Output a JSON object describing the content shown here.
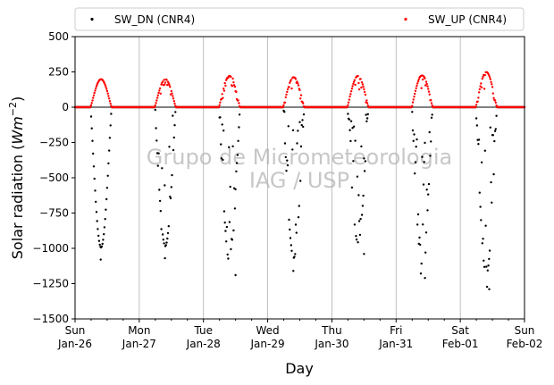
{
  "chart_data": {
    "type": "scatter",
    "xlabel": "Day",
    "ylabel_prefix": "Solar radiation (",
    "ylabel_unit": "Wm",
    "ylabel_exp": "−2",
    "ylabel_suffix": ")",
    "ylim": [
      -1500,
      500
    ],
    "yticks": [
      500,
      250,
      0,
      -250,
      -500,
      -750,
      -1000,
      -1250,
      -1500
    ],
    "xlim_days": [
      0,
      7
    ],
    "xticks": [
      {
        "day": "Sun",
        "date": "Jan-26"
      },
      {
        "day": "Mon",
        "date": "Jan-27"
      },
      {
        "day": "Tue",
        "date": "Jan-28"
      },
      {
        "day": "Wed",
        "date": "Jan-29"
      },
      {
        "day": "Thu",
        "date": "Jan-30"
      },
      {
        "day": "Fri",
        "date": "Jan-31"
      },
      {
        "day": "Sat",
        "date": "Feb-01"
      },
      {
        "day": "Sun",
        "date": "Feb-02"
      }
    ],
    "grid": "vertical",
    "legend": {
      "placement": "top",
      "entries": [
        {
          "label": "SW_DN (CNR4)",
          "color": "#000000"
        },
        {
          "label": "SW_UP (CNR4)",
          "color": "#ff0000"
        }
      ]
    },
    "watermark": [
      "Grupo de Micrometeorologia",
      "IAG / USP"
    ],
    "series": [
      {
        "name": "SW_DN (CNR4)",
        "color": "#000000",
        "daily_peaks": [
          -1080,
          -1070,
          -1190,
          -1160,
          -1040,
          -1210,
          -1290
        ],
        "sample_points": [
          {
            "x": 0.4,
            "y": -1080
          },
          {
            "x": 1.4,
            "y": -1070
          },
          {
            "x": 2.5,
            "y": -1190
          },
          {
            "x": 3.4,
            "y": -1160
          },
          {
            "x": 4.5,
            "y": -1040
          },
          {
            "x": 5.45,
            "y": -1210
          },
          {
            "x": 6.45,
            "y": -1290
          }
        ]
      },
      {
        "name": "SW_UP (CNR4)",
        "color": "#ff0000",
        "daily_peaks": [
          215,
          215,
          240,
          230,
          240,
          245,
          270
        ]
      }
    ]
  }
}
